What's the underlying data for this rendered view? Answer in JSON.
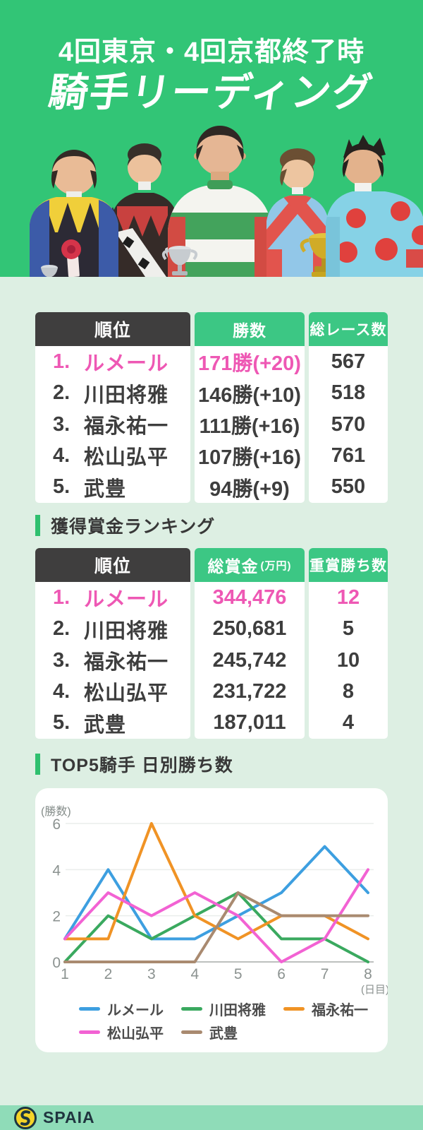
{
  "header": {
    "subtitle": "4回東京・4回京都終了時",
    "title": "騎手リーディング"
  },
  "colors": {
    "hero-green": "#32c576",
    "bg-mint": "#ddefe3",
    "th-green": "#3cc784",
    "bar-green": "#2fc06f",
    "dark": "#3f3e3e",
    "pink": "#ee58b4",
    "text": "#3e3e3e",
    "footer-green": "#8fdcb8"
  },
  "wins_table": {
    "columns": [
      "順位",
      "勝数",
      "総レース数"
    ],
    "rows": [
      {
        "rank": "1.",
        "name": "ルメール",
        "wins": "171勝(+20)",
        "races": "567"
      },
      {
        "rank": "2.",
        "name": "川田将雅",
        "wins": "146勝(+10)",
        "races": "518"
      },
      {
        "rank": "3.",
        "name": "福永祐一",
        "wins": "111勝(+16)",
        "races": "570"
      },
      {
        "rank": "4.",
        "name": "松山弘平",
        "wins": "107勝(+16)",
        "races": "761"
      },
      {
        "rank": "5.",
        "name": "武豊",
        "wins": "94勝(+9)",
        "races": "550"
      }
    ]
  },
  "prize_section_title": "獲得賞金ランキング",
  "prize_table": {
    "columns": [
      "順位",
      "総賞金",
      "重賞勝ち数"
    ],
    "unit": "(万円)",
    "rows": [
      {
        "rank": "1.",
        "name": "ルメール",
        "prize": "344,476",
        "graded": "12"
      },
      {
        "rank": "2.",
        "name": "川田将雅",
        "prize": "250,681",
        "graded": "5"
      },
      {
        "rank": "3.",
        "name": "福永祐一",
        "prize": "245,742",
        "graded": "10"
      },
      {
        "rank": "4.",
        "name": "松山弘平",
        "prize": "231,722",
        "graded": "8"
      },
      {
        "rank": "5.",
        "name": "武豊",
        "prize": "187,011",
        "graded": "4"
      }
    ]
  },
  "chart_section_title": "TOP5騎手 日別勝ち数",
  "chart_data": {
    "type": "line",
    "x": [
      1,
      2,
      3,
      4,
      5,
      6,
      7,
      8
    ],
    "xlabel": "(日目)",
    "ylabel": "(勝数)",
    "ylim": [
      0,
      6
    ],
    "yticks": [
      0,
      2,
      4,
      6
    ],
    "grid": true,
    "legend_position": "bottom",
    "series": [
      {
        "name": "ルメール",
        "color": "#3d9fe0",
        "values": [
          1,
          4,
          1,
          1,
          2,
          3,
          5,
          3
        ]
      },
      {
        "name": "川田将雅",
        "color": "#3aa95f",
        "values": [
          0,
          2,
          1,
          2,
          3,
          1,
          1,
          0
        ]
      },
      {
        "name": "福永祐一",
        "color": "#f09325",
        "values": [
          1,
          1,
          6,
          2,
          1,
          2,
          2,
          1
        ]
      },
      {
        "name": "松山弘平",
        "color": "#f262d3",
        "values": [
          1,
          3,
          2,
          3,
          2,
          0,
          1,
          4
        ]
      },
      {
        "name": "武豊",
        "color": "#a98a70",
        "values": [
          0,
          0,
          0,
          0,
          3,
          2,
          2,
          2
        ]
      }
    ]
  },
  "footer": {
    "brand": "SPAIA"
  }
}
